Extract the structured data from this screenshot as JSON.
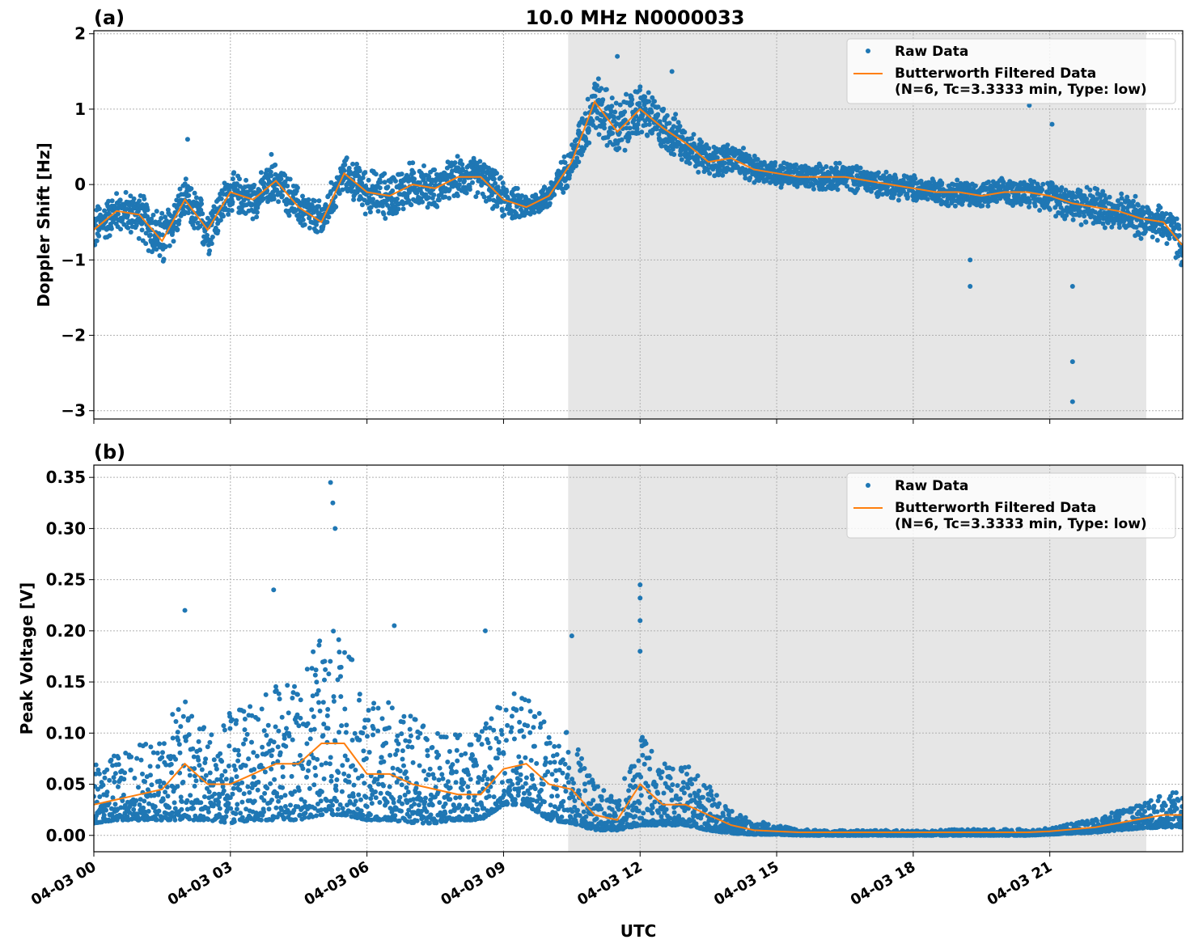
{
  "chart_data": [
    {
      "type": "scatter+line",
      "panel_label": "(a)",
      "title": "10.0 MHz N0000033",
      "xlabel": "",
      "ylabel": "Doppler Shift [Hz]",
      "ylim": [
        -3.11,
        2.04
      ],
      "yticks": [
        2,
        1,
        0,
        -1,
        -2,
        -3
      ],
      "ytick_labels": [
        "2",
        "1",
        "0",
        "−1",
        "−2",
        "−3"
      ],
      "grid": true,
      "legend": "top-right",
      "legend_entries": [
        "Raw Data",
        "Butterworth Filtered Data",
        "(N=6, Tc=3.3333 min, Type: low)"
      ],
      "shaded_hours": [
        10.42,
        23.12
      ],
      "x_hours": [
        0,
        0.5,
        1,
        1.5,
        2,
        2.5,
        3,
        3.5,
        4,
        4.5,
        5,
        5.5,
        6,
        6.5,
        7,
        7.5,
        8,
        8.5,
        9,
        9.5,
        10,
        10.5,
        11,
        11.5,
        12,
        12.5,
        13,
        13.5,
        14,
        14.5,
        15,
        15.5,
        16,
        16.5,
        17,
        17.5,
        18,
        18.5,
        19,
        19.5,
        20,
        20.5,
        21,
        21.5,
        22,
        22.5,
        23,
        23.5,
        23.9
      ],
      "filtered": [
        -0.6,
        -0.35,
        -0.4,
        -0.75,
        -0.2,
        -0.6,
        -0.1,
        -0.2,
        0.05,
        -0.3,
        -0.5,
        0.15,
        -0.1,
        -0.15,
        0.0,
        -0.05,
        0.1,
        0.1,
        -0.2,
        -0.3,
        -0.15,
        0.3,
        1.1,
        0.7,
        1.0,
        0.75,
        0.55,
        0.3,
        0.35,
        0.2,
        0.15,
        0.1,
        0.1,
        0.1,
        0.05,
        0.0,
        -0.05,
        -0.1,
        -0.1,
        -0.15,
        -0.1,
        -0.1,
        -0.15,
        -0.25,
        -0.3,
        -0.35,
        -0.45,
        -0.5,
        -0.8
      ],
      "raw_spread": [
        0.35,
        0.3,
        0.35,
        0.45,
        0.3,
        0.4,
        0.3,
        0.3,
        0.3,
        0.3,
        0.3,
        0.25,
        0.35,
        0.35,
        0.35,
        0.3,
        0.3,
        0.3,
        0.3,
        0.2,
        0.2,
        0.3,
        0.45,
        0.45,
        0.4,
        0.35,
        0.3,
        0.25,
        0.25,
        0.2,
        0.2,
        0.2,
        0.2,
        0.2,
        0.2,
        0.2,
        0.2,
        0.2,
        0.2,
        0.2,
        0.2,
        0.2,
        0.25,
        0.3,
        0.3,
        0.3,
        0.3,
        0.3,
        0.4
      ],
      "outliers": [
        [
          2.06,
          0.6
        ],
        [
          3.9,
          0.4
        ],
        [
          10.65,
          0.3
        ],
        [
          19.25,
          -1.0
        ],
        [
          19.25,
          -1.35
        ],
        [
          20.55,
          1.05
        ],
        [
          21.05,
          0.8
        ],
        [
          21.5,
          -1.35
        ],
        [
          21.5,
          -2.35
        ],
        [
          21.5,
          -2.88
        ],
        [
          11.5,
          1.7
        ],
        [
          12.7,
          1.5
        ]
      ]
    },
    {
      "type": "scatter+line",
      "panel_label": "(b)",
      "title": "",
      "xlabel": "UTC",
      "ylabel": "Peak Voltage [V]",
      "ylim": [
        -0.016,
        0.362
      ],
      "yticks": [
        0.0,
        0.05,
        0.1,
        0.15,
        0.2,
        0.25,
        0.3,
        0.35
      ],
      "ytick_labels": [
        "0.00",
        "0.05",
        "0.10",
        "0.15",
        "0.20",
        "0.25",
        "0.30",
        "0.35"
      ],
      "grid": true,
      "legend": "top-right",
      "legend_entries": [
        "Raw Data",
        "Butterworth Filtered Data",
        "(N=6, Tc=3.3333 min, Type: low)"
      ],
      "shaded_hours": [
        10.42,
        23.12
      ],
      "x_hours": [
        0,
        0.5,
        1,
        1.5,
        2,
        2.5,
        3,
        3.5,
        4,
        4.5,
        5,
        5.5,
        6,
        6.5,
        7,
        7.5,
        8,
        8.5,
        9,
        9.5,
        10,
        10.5,
        11,
        11.5,
        12,
        12.5,
        13,
        13.5,
        14,
        14.5,
        15,
        15.5,
        16,
        16.5,
        17,
        17.5,
        18,
        18.5,
        19,
        19.5,
        20,
        20.5,
        21,
        21.5,
        22,
        22.5,
        23,
        23.5,
        23.9
      ],
      "filtered": [
        0.03,
        0.035,
        0.04,
        0.045,
        0.07,
        0.05,
        0.05,
        0.06,
        0.07,
        0.07,
        0.09,
        0.09,
        0.06,
        0.06,
        0.05,
        0.045,
        0.04,
        0.04,
        0.065,
        0.07,
        0.05,
        0.045,
        0.02,
        0.015,
        0.05,
        0.03,
        0.03,
        0.02,
        0.01,
        0.005,
        0.004,
        0.003,
        0.003,
        0.003,
        0.003,
        0.003,
        0.003,
        0.003,
        0.003,
        0.003,
        0.003,
        0.003,
        0.004,
        0.006,
        0.008,
        0.012,
        0.016,
        0.02,
        0.02
      ],
      "raw_low": [
        0.012,
        0.015,
        0.015,
        0.015,
        0.015,
        0.015,
        0.012,
        0.015,
        0.015,
        0.015,
        0.02,
        0.02,
        0.015,
        0.015,
        0.012,
        0.012,
        0.015,
        0.015,
        0.03,
        0.03,
        0.015,
        0.012,
        0.005,
        0.005,
        0.01,
        0.01,
        0.01,
        0.005,
        0.002,
        0.001,
        0.001,
        0.0,
        0.0,
        0.0,
        0.0,
        0.0,
        0.0,
        0.0,
        0.0,
        0.0,
        0.0,
        0.0,
        0.001,
        0.002,
        0.003,
        0.005,
        0.007,
        0.008,
        0.008
      ],
      "raw_high": [
        0.07,
        0.08,
        0.09,
        0.1,
        0.14,
        0.11,
        0.12,
        0.13,
        0.15,
        0.15,
        0.2,
        0.2,
        0.13,
        0.13,
        0.12,
        0.1,
        0.1,
        0.1,
        0.14,
        0.14,
        0.11,
        0.1,
        0.05,
        0.04,
        0.1,
        0.07,
        0.07,
        0.05,
        0.025,
        0.015,
        0.01,
        0.006,
        0.005,
        0.005,
        0.005,
        0.005,
        0.005,
        0.005,
        0.006,
        0.006,
        0.006,
        0.006,
        0.007,
        0.012,
        0.018,
        0.025,
        0.03,
        0.04,
        0.045
      ],
      "outliers": [
        [
          2.0,
          0.22
        ],
        [
          3.95,
          0.24
        ],
        [
          5.2,
          0.345
        ],
        [
          5.25,
          0.325
        ],
        [
          5.3,
          0.3
        ],
        [
          6.6,
          0.205
        ],
        [
          8.6,
          0.2
        ],
        [
          10.5,
          0.195
        ],
        [
          12.0,
          0.245
        ],
        [
          12.0,
          0.232
        ],
        [
          12.0,
          0.21
        ],
        [
          12.0,
          0.18
        ]
      ]
    }
  ],
  "x_axis": {
    "tick_labels": [
      "04-03 00",
      "04-03 03",
      "04-03 06",
      "04-03 09",
      "04-03 12",
      "04-03 15",
      "04-03 18",
      "04-03 21"
    ],
    "tick_hours": [
      0,
      3,
      6,
      9,
      12,
      15,
      18,
      21
    ],
    "range_hours": [
      0,
      23.92
    ]
  },
  "colors": {
    "raw": "#1f77b4",
    "filtered": "#ff7f0e",
    "shade": "#e6e6e6",
    "grid": "#b0b0b0"
  }
}
